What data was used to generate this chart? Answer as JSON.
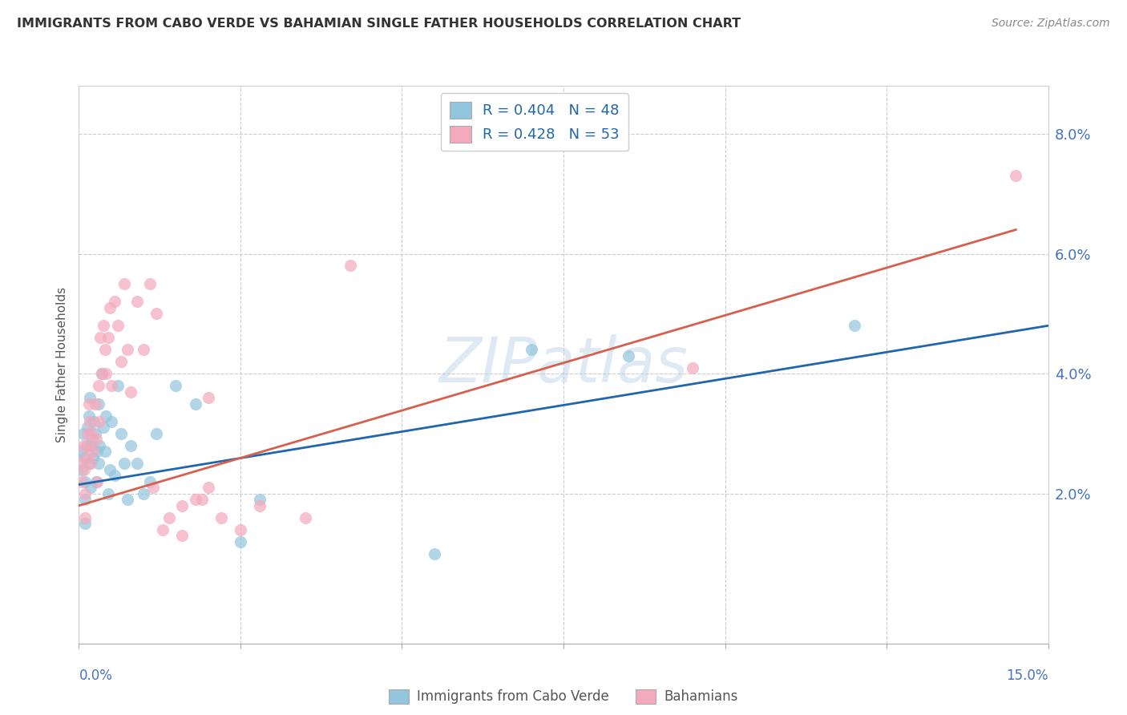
{
  "title": "IMMIGRANTS FROM CABO VERDE VS BAHAMIAN SINGLE FATHER HOUSEHOLDS CORRELATION CHART",
  "source": "Source: ZipAtlas.com",
  "ylabel": "Single Father Households",
  "xlim": [
    0.0,
    0.15
  ],
  "ylim": [
    -0.005,
    0.088
  ],
  "legend_r1": "R = 0.404",
  "legend_n1": "N = 48",
  "legend_r2": "R = 0.428",
  "legend_n2": "N = 53",
  "color_blue": "#92c5de",
  "color_pink": "#f4a9bc",
  "trend_blue": "#2166ac",
  "trend_pink": "#d6604d",
  "cabo_verde_x": [
    0.0003,
    0.0005,
    0.0007,
    0.0008,
    0.001,
    0.001,
    0.001,
    0.0012,
    0.0013,
    0.0015,
    0.0015,
    0.0017,
    0.0018,
    0.0018,
    0.002,
    0.0022,
    0.0023,
    0.0025,
    0.0027,
    0.0028,
    0.003,
    0.003,
    0.0032,
    0.0035,
    0.0038,
    0.004,
    0.0042,
    0.0045,
    0.0048,
    0.005,
    0.0055,
    0.006,
    0.0065,
    0.007,
    0.0075,
    0.008,
    0.009,
    0.01,
    0.011,
    0.012,
    0.015,
    0.018,
    0.025,
    0.028,
    0.055,
    0.07,
    0.085,
    0.12
  ],
  "cabo_verde_y": [
    0.027,
    0.024,
    0.03,
    0.026,
    0.022,
    0.019,
    0.015,
    0.028,
    0.031,
    0.033,
    0.025,
    0.036,
    0.028,
    0.021,
    0.029,
    0.026,
    0.032,
    0.03,
    0.022,
    0.027,
    0.035,
    0.025,
    0.028,
    0.04,
    0.031,
    0.027,
    0.033,
    0.02,
    0.024,
    0.032,
    0.023,
    0.038,
    0.03,
    0.025,
    0.019,
    0.028,
    0.025,
    0.02,
    0.022,
    0.03,
    0.038,
    0.035,
    0.012,
    0.019,
    0.01,
    0.044,
    0.043,
    0.048
  ],
  "bahamians_x": [
    0.0003,
    0.0005,
    0.0007,
    0.0008,
    0.001,
    0.001,
    0.0012,
    0.0013,
    0.0015,
    0.0015,
    0.0017,
    0.0018,
    0.002,
    0.0022,
    0.0025,
    0.0027,
    0.0028,
    0.003,
    0.0032,
    0.0033,
    0.0035,
    0.0038,
    0.004,
    0.0042,
    0.0045,
    0.0048,
    0.005,
    0.0055,
    0.006,
    0.0065,
    0.007,
    0.0075,
    0.008,
    0.009,
    0.01,
    0.011,
    0.012,
    0.014,
    0.016,
    0.018,
    0.02,
    0.022,
    0.025,
    0.028,
    0.035,
    0.042,
    0.02,
    0.019,
    0.016,
    0.013,
    0.0115,
    0.095,
    0.145
  ],
  "bahamians_y": [
    0.025,
    0.022,
    0.028,
    0.024,
    0.02,
    0.016,
    0.026,
    0.03,
    0.035,
    0.028,
    0.032,
    0.025,
    0.03,
    0.027,
    0.035,
    0.029,
    0.022,
    0.038,
    0.032,
    0.046,
    0.04,
    0.048,
    0.044,
    0.04,
    0.046,
    0.051,
    0.038,
    0.052,
    0.048,
    0.042,
    0.055,
    0.044,
    0.037,
    0.052,
    0.044,
    0.055,
    0.05,
    0.016,
    0.018,
    0.019,
    0.021,
    0.016,
    0.014,
    0.018,
    0.016,
    0.058,
    0.036,
    0.019,
    0.013,
    0.014,
    0.021,
    0.041,
    0.073
  ],
  "cabo_trend_x": [
    0.0,
    0.15
  ],
  "cabo_trend_y": [
    0.0215,
    0.048
  ],
  "bah_trend_x": [
    0.0,
    0.145
  ],
  "bah_trend_y": [
    0.018,
    0.064
  ],
  "watermark": "ZIPatlas",
  "yticks": [
    0.02,
    0.04,
    0.06,
    0.08
  ],
  "ytick_labels": [
    "2.0%",
    "4.0%",
    "6.0%",
    "8.0%"
  ],
  "xticks": [
    0.0,
    0.025,
    0.05,
    0.075,
    0.1,
    0.125,
    0.15
  ]
}
